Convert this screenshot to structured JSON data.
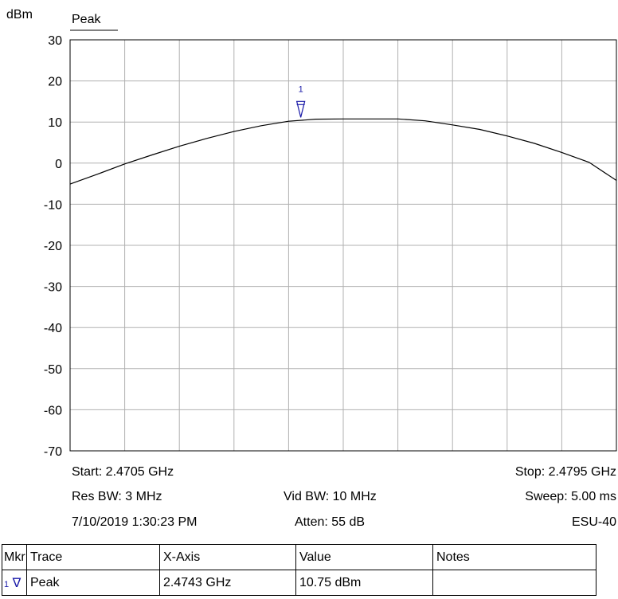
{
  "header": {
    "unit": "dBm",
    "trace_label": "Peak"
  },
  "chart_data": {
    "type": "line",
    "ylabel": "dBm",
    "ylim": [
      -70,
      30
    ],
    "yticks": [
      "30",
      "20",
      "10",
      "0",
      "-10",
      "-20",
      "-30",
      "-40",
      "-50",
      "-60",
      "-70"
    ],
    "xlim": [
      2.4705,
      2.4795
    ],
    "x_unit": "GHz",
    "series": [
      {
        "name": "Peak",
        "x": [
          2.4705,
          2.47095,
          2.4714,
          2.47185,
          2.4723,
          2.47275,
          2.4732,
          2.47365,
          2.4741,
          2.47455,
          2.475,
          2.47545,
          2.4759,
          2.47635,
          2.4768,
          2.47725,
          2.4777,
          2.47815,
          2.4786,
          2.47905,
          2.4795
        ],
        "y": [
          -5.1,
          -2.7,
          -0.2,
          2.0,
          4.1,
          6.0,
          7.7,
          9.1,
          10.2,
          10.7,
          10.75,
          10.75,
          10.75,
          10.3,
          9.3,
          8.2,
          6.6,
          4.8,
          2.6,
          0.2,
          -4.2
        ]
      }
    ],
    "marker": {
      "number": "1",
      "x": 2.4743,
      "y": 10.75
    },
    "grid": true
  },
  "settings": {
    "start": "Start: 2.4705 GHz",
    "stop": "Stop: 2.4795 GHz",
    "res_bw": "Res BW: 3 MHz",
    "vid_bw": "Vid BW: 10 MHz",
    "sweep": "Sweep: 5.00 ms",
    "datetime": "7/10/2019 1:30:23 PM",
    "atten": "Atten: 55 dB",
    "instrument": "ESU-40"
  },
  "marker_table": {
    "headers": [
      "Mkr",
      "Trace",
      "X-Axis",
      "Value",
      "Notes"
    ],
    "rows": [
      {
        "mkr": "1",
        "trace": "Peak",
        "x_axis": "2.4743 GHz",
        "value": "10.75 dBm",
        "notes": ""
      }
    ]
  },
  "colors": {
    "marker": "#1a1aa8",
    "trace": "#000000",
    "grid": "#b0b0b0"
  }
}
